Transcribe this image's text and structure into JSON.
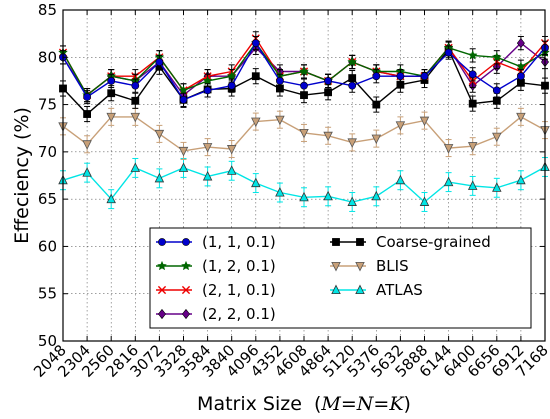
{
  "chart_data": {
    "type": "line",
    "title": "",
    "xlabel": "Matrix Size",
    "xlabel_math": {
      "open": "(",
      "M": "M",
      "eq1": "=",
      "N": "N",
      "eq2": "=",
      "K": "K",
      "close": ")"
    },
    "ylabel": "Effeciency (%)",
    "ylim": [
      50,
      85
    ],
    "yticks": [
      50,
      55,
      60,
      65,
      70,
      75,
      80,
      85
    ],
    "x": [
      2048,
      2304,
      2560,
      2816,
      3072,
      3328,
      3584,
      3840,
      4096,
      4352,
      4608,
      4864,
      5120,
      5376,
      5632,
      5888,
      6144,
      6400,
      6656,
      6912,
      7168
    ],
    "legend_position": "lower-right, two columns",
    "series": [
      {
        "name": "(1, 1, 0.1)",
        "color": "#0000cc",
        "marker": "circle",
        "error": 0.7,
        "values": [
          80.0,
          75.8,
          77.5,
          77.0,
          79.5,
          75.5,
          76.5,
          77.0,
          81.5,
          77.5,
          77.0,
          77.5,
          77.0,
          78.0,
          78.0,
          78.0,
          80.5,
          78.2,
          76.5,
          78.0,
          81.0
        ]
      },
      {
        "name": "(1, 2, 0.1)",
        "color": "#006600",
        "marker": "star",
        "error": 0.7,
        "values": [
          80.5,
          76.0,
          78.0,
          77.5,
          80.0,
          76.5,
          77.5,
          78.0,
          81.5,
          78.0,
          78.5,
          77.5,
          79.5,
          78.5,
          78.5,
          78.0,
          81.0,
          80.2,
          80.0,
          79.0,
          80.5
        ]
      },
      {
        "name": "(2, 1, 0.1)",
        "color": "#ee0000",
        "marker": "x",
        "error": 0.7,
        "values": [
          80.5,
          76.0,
          78.0,
          78.0,
          80.0,
          76.5,
          78.0,
          78.5,
          82.0,
          78.0,
          78.5,
          77.5,
          79.5,
          78.5,
          78.0,
          78.0,
          81.0,
          77.5,
          79.5,
          78.5,
          81.5
        ]
      },
      {
        "name": "(2, 2, 0.1)",
        "color": "#660088",
        "marker": "diamond",
        "error": 0.7,
        "values": [
          80.0,
          76.0,
          78.0,
          77.5,
          79.5,
          76.0,
          78.0,
          78.0,
          81.0,
          78.5,
          78.5,
          77.5,
          79.5,
          78.5,
          78.0,
          78.0,
          81.0,
          77.0,
          79.0,
          81.5,
          79.5
        ]
      },
      {
        "name": "Coarse-grained",
        "color": "#000000",
        "marker": "square",
        "error": 0.8,
        "values": [
          76.7,
          74.0,
          76.2,
          75.4,
          79.0,
          75.5,
          76.6,
          76.7,
          78.0,
          76.7,
          76.0,
          76.3,
          77.8,
          75.0,
          77.1,
          77.6,
          80.8,
          75.1,
          75.4,
          77.3,
          77.0
        ]
      },
      {
        "name": "BLIS",
        "color": "#c8a078",
        "marker": "triangle-down",
        "error": 0.9,
        "values": [
          72.7,
          70.8,
          73.7,
          73.7,
          71.9,
          70.1,
          70.5,
          70.3,
          73.2,
          73.4,
          72.0,
          71.7,
          71.0,
          71.4,
          72.8,
          73.3,
          70.4,
          70.6,
          71.6,
          73.7,
          72.3
        ]
      },
      {
        "name": "ATLAS",
        "color": "#00e5e5",
        "marker": "triangle-up",
        "error": 1.0,
        "values": [
          67.0,
          67.8,
          65.0,
          68.3,
          67.2,
          68.3,
          67.4,
          68.0,
          66.7,
          65.7,
          65.2,
          65.3,
          64.7,
          65.3,
          67.0,
          64.7,
          66.8,
          66.4,
          66.2,
          67.0,
          68.4
        ]
      }
    ]
  }
}
